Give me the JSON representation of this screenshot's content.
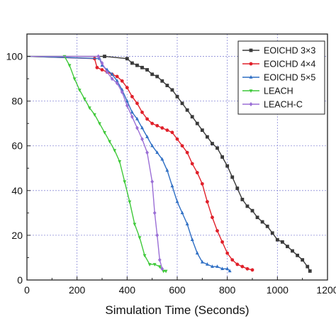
{
  "chart_data": {
    "type": "line",
    "title": "",
    "xlabel": "Simulation Time (Seconds)",
    "ylabel": "",
    "xlim": [
      0,
      1200
    ],
    "ylim": [
      0,
      110
    ],
    "xticks": [
      0,
      200,
      400,
      600,
      800,
      1000,
      1200
    ],
    "yticks": [
      0,
      20,
      40,
      60,
      80,
      100
    ],
    "grid": true,
    "legend_position": "top-right",
    "series": [
      {
        "name": "EOICHD 3×3",
        "color": "#3a3a3a",
        "marker": "square",
        "x": [
          0,
          310,
          400,
          420,
          440,
          460,
          480,
          500,
          520,
          540,
          560,
          580,
          600,
          620,
          640,
          660,
          680,
          700,
          720,
          740,
          760,
          780,
          800,
          820,
          840,
          860,
          880,
          900,
          920,
          940,
          960,
          980,
          1000,
          1020,
          1040,
          1060,
          1080,
          1100,
          1120,
          1130
        ],
        "y": [
          100,
          100,
          99,
          97,
          96,
          95,
          94,
          92,
          91,
          89,
          87,
          85,
          82,
          79,
          76,
          73,
          70,
          67,
          64,
          61,
          59,
          55,
          51,
          46,
          41,
          36,
          33,
          31,
          28,
          26,
          24,
          21,
          18,
          17,
          15,
          13,
          11,
          9,
          6,
          4
        ]
      },
      {
        "name": "EOICHD 4×4",
        "color": "#e0202a",
        "marker": "circle",
        "x": [
          0,
          270,
          280,
          300,
          320,
          340,
          360,
          380,
          400,
          420,
          440,
          460,
          480,
          500,
          520,
          540,
          560,
          580,
          600,
          620,
          640,
          660,
          680,
          700,
          720,
          740,
          760,
          780,
          800,
          820,
          840,
          860,
          880,
          900
        ],
        "y": [
          100,
          99,
          95,
          94,
          93,
          92,
          91,
          89,
          86,
          82,
          79,
          75,
          72,
          70,
          69,
          68,
          67,
          66,
          63,
          60,
          57,
          52,
          48,
          43,
          35,
          28,
          22,
          17,
          12,
          9,
          7,
          6,
          5,
          4.5
        ]
      },
      {
        "name": "EOICHD 5×5",
        "color": "#2f6fc4",
        "marker": "triangle",
        "x": [
          0,
          290,
          300,
          320,
          340,
          360,
          380,
          400,
          420,
          440,
          460,
          480,
          500,
          520,
          540,
          560,
          580,
          600,
          620,
          640,
          660,
          680,
          700,
          720,
          740,
          760,
          780,
          800,
          810
        ],
        "y": [
          100,
          99,
          96,
          94,
          92,
          89,
          85,
          80,
          75,
          72,
          68,
          64,
          60,
          57,
          54,
          49,
          42,
          35,
          30,
          25,
          18,
          12,
          8,
          7,
          6,
          6,
          5,
          5,
          4
        ]
      },
      {
        "name": "LEACH",
        "color": "#3fc93a",
        "marker": "triangle-down",
        "x": [
          0,
          150,
          170,
          190,
          210,
          230,
          250,
          270,
          290,
          310,
          330,
          350,
          370,
          390,
          410,
          430,
          450,
          470,
          490,
          510,
          530,
          545,
          555
        ],
        "y": [
          100,
          100,
          96,
          90,
          85,
          81,
          77,
          74,
          70,
          66,
          62,
          58,
          53,
          44,
          35,
          25,
          19,
          11,
          7,
          7,
          6,
          4,
          4
        ]
      },
      {
        "name": "LEACH-C",
        "color": "#9b6fd6",
        "marker": "diamond",
        "x": [
          0,
          285,
          300,
          320,
          340,
          360,
          380,
          400,
          420,
          440,
          460,
          480,
          500,
          510,
          520,
          530,
          540
        ],
        "y": [
          100,
          100,
          97,
          93,
          90,
          88,
          84,
          78,
          73,
          68,
          63,
          57,
          44,
          30,
          20,
          9,
          5
        ]
      }
    ]
  }
}
